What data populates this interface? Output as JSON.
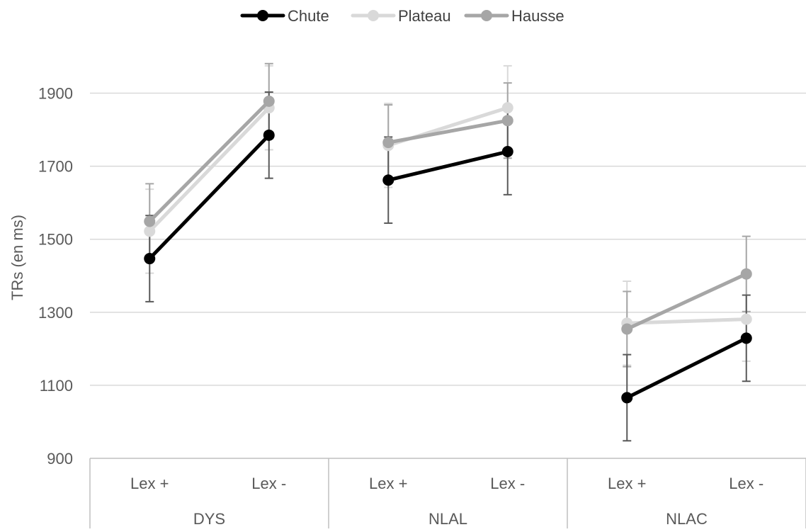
{
  "chart_data": {
    "type": "line",
    "title": "",
    "xlabel": "",
    "ylabel": "TRs (en ms)",
    "ylim": [
      900,
      2000
    ],
    "yticks": [
      900,
      1100,
      1300,
      1500,
      1700,
      1900
    ],
    "grid": true,
    "legend_position": "top",
    "groups": [
      {
        "label": "DYS",
        "categories": [
          "Lex +",
          "Lex -"
        ]
      },
      {
        "label": "NLAL",
        "categories": [
          "Lex +",
          "Lex -"
        ]
      },
      {
        "label": "NLAC",
        "categories": [
          "Lex +",
          "Lex -"
        ]
      }
    ],
    "series": [
      {
        "name": "Chute",
        "color": "#000000",
        "values": [
          [
            1447,
            1785
          ],
          [
            1662,
            1740
          ],
          [
            1066,
            1229
          ]
        ],
        "errors": [
          [
            118,
            118
          ],
          [
            118,
            118
          ],
          [
            118,
            118
          ]
        ]
      },
      {
        "name": "Plateau",
        "color": "#d9d9d9",
        "values": [
          [
            1522,
            1860
          ],
          [
            1757,
            1860
          ],
          [
            1270,
            1281
          ]
        ],
        "errors": [
          [
            115,
            115
          ],
          [
            115,
            115
          ],
          [
            115,
            115
          ]
        ]
      },
      {
        "name": "Hausse",
        "color": "#a6a6a6",
        "values": [
          [
            1549,
            1878
          ],
          [
            1765,
            1825
          ],
          [
            1254,
            1405
          ]
        ],
        "errors": [
          [
            103,
            103
          ],
          [
            103,
            103
          ],
          [
            103,
            103
          ]
        ]
      }
    ]
  }
}
